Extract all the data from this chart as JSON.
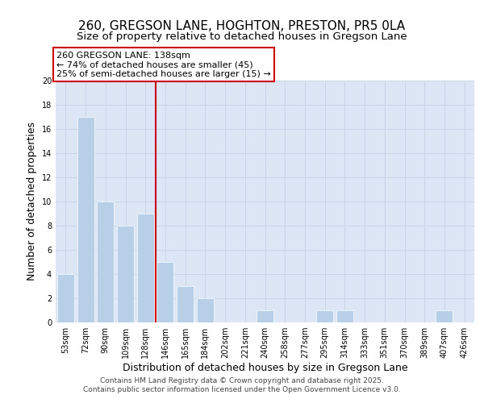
{
  "title_line1": "260, GREGSON LANE, HOGHTON, PRESTON, PR5 0LA",
  "title_line2": "Size of property relative to detached houses in Gregson Lane",
  "xlabel": "Distribution of detached houses by size in Gregson Lane",
  "ylabel": "Number of detached properties",
  "categories": [
    "53sqm",
    "72sqm",
    "90sqm",
    "109sqm",
    "128sqm",
    "146sqm",
    "165sqm",
    "184sqm",
    "202sqm",
    "221sqm",
    "240sqm",
    "258sqm",
    "277sqm",
    "295sqm",
    "314sqm",
    "333sqm",
    "351sqm",
    "370sqm",
    "389sqm",
    "407sqm",
    "426sqm"
  ],
  "values": [
    4,
    17,
    10,
    8,
    9,
    5,
    3,
    2,
    0,
    0,
    1,
    0,
    0,
    1,
    1,
    0,
    0,
    0,
    0,
    1,
    0
  ],
  "bar_color": "#b8cfe8",
  "bar_edge_color": "#b8cfe8",
  "vline_color": "#cc0000",
  "annotation_line1": "260 GREGSON LANE: 138sqm",
  "annotation_line2": "← 74% of detached houses are smaller (45)",
  "annotation_line3": "25% of semi-detached houses are larger (15) →",
  "annotation_box_color": "#cc0000",
  "ylim": [
    0,
    20
  ],
  "yticks": [
    0,
    2,
    4,
    6,
    8,
    10,
    12,
    14,
    16,
    18,
    20
  ],
  "grid_color": "#c8d4e8",
  "bg_color": "#dce6f5",
  "footer_line1": "Contains HM Land Registry data © Crown copyright and database right 2025.",
  "footer_line2": "Contains public sector information licensed under the Open Government Licence v3.0.",
  "title_fontsize": 11,
  "subtitle_fontsize": 9.5,
  "axis_label_fontsize": 9,
  "tick_fontsize": 7,
  "annotation_fontsize": 8,
  "footer_fontsize": 6.5
}
